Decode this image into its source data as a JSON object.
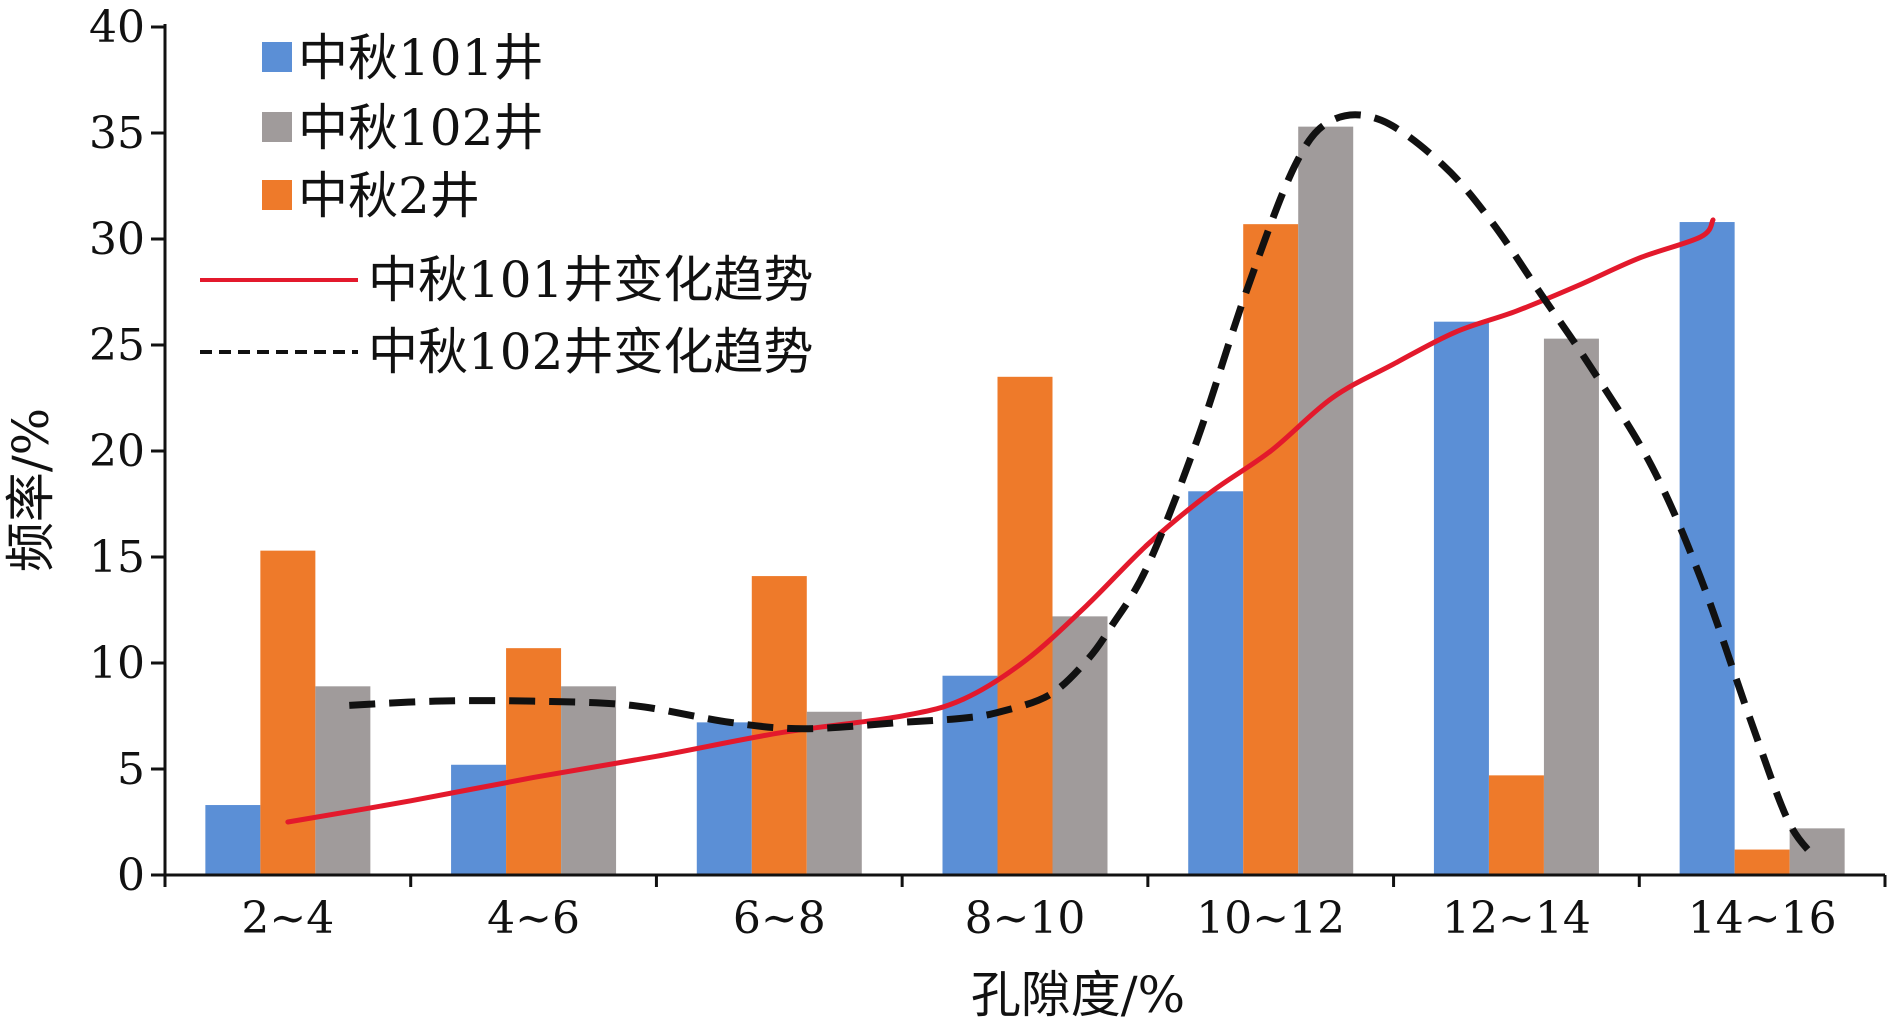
{
  "chart_data": {
    "type": "bar",
    "xlabel": "孔隙度/%",
    "ylabel": "频率/%",
    "ylim": [
      0,
      40
    ],
    "yticks": [
      0,
      5,
      10,
      15,
      20,
      25,
      30,
      35,
      40
    ],
    "categories": [
      "2~4",
      "4~6",
      "6~8",
      "8~10",
      "10~12",
      "12~14",
      "14~16"
    ],
    "series": [
      {
        "name": "中秋101井",
        "kind": "bar",
        "color": "#5b8fd6",
        "values": [
          3.3,
          5.2,
          7.2,
          9.4,
          18.1,
          26.1,
          30.8
        ]
      },
      {
        "name": "中秋2井",
        "kind": "bar",
        "color": "#ee7a2a",
        "values": [
          15.3,
          10.7,
          14.1,
          23.5,
          30.7,
          4.7,
          1.2
        ]
      },
      {
        "name": "中秋102井",
        "kind": "bar",
        "color": "#a09b9b",
        "values": [
          8.9,
          8.9,
          7.7,
          12.2,
          35.3,
          25.3,
          2.2
        ]
      },
      {
        "name": "中秋101井变化趋势",
        "kind": "line",
        "color": "#e3192c",
        "dash": false,
        "points": [
          [
            0,
            2.5
          ],
          [
            0.5,
            3.5
          ],
          [
            1,
            4.6
          ],
          [
            1.5,
            5.6
          ],
          [
            2,
            6.7
          ],
          [
            2.5,
            7.5
          ],
          [
            2.75,
            8.3
          ],
          [
            3,
            10.1
          ],
          [
            3.25,
            12.7
          ],
          [
            3.5,
            15.6
          ],
          [
            3.75,
            18.0
          ],
          [
            4,
            20.0
          ],
          [
            4.25,
            22.5
          ],
          [
            4.5,
            24.1
          ],
          [
            4.75,
            25.6
          ],
          [
            5,
            26.6
          ],
          [
            5.25,
            27.8
          ],
          [
            5.5,
            29.1
          ],
          [
            5.75,
            30.1
          ],
          [
            5.8,
            30.9
          ]
        ]
      },
      {
        "name": "中秋102井变化趋势",
        "kind": "line",
        "color": "#111111",
        "dash": true,
        "points": [
          [
            0.25,
            8.0
          ],
          [
            0.6,
            8.2
          ],
          [
            1.0,
            8.2
          ],
          [
            1.4,
            8.0
          ],
          [
            1.8,
            7.2
          ],
          [
            2.1,
            6.9
          ],
          [
            2.5,
            7.2
          ],
          [
            2.75,
            7.4
          ],
          [
            2.9,
            7.7
          ],
          [
            3.1,
            8.5
          ],
          [
            3.25,
            10.1
          ],
          [
            3.35,
            11.7
          ],
          [
            3.5,
            14.6
          ],
          [
            3.7,
            20.5
          ],
          [
            3.9,
            27.5
          ],
          [
            4.1,
            33.5
          ],
          [
            4.25,
            35.6
          ],
          [
            4.45,
            35.6
          ],
          [
            4.7,
            33.5
          ],
          [
            4.9,
            30.8
          ],
          [
            5.1,
            27.4
          ],
          [
            5.3,
            24.0
          ],
          [
            5.55,
            19.3
          ],
          [
            5.75,
            14.0
          ],
          [
            5.95,
            7.4
          ],
          [
            6.1,
            2.7
          ],
          [
            6.2,
            1.0
          ]
        ]
      }
    ],
    "legend": {
      "position": "top-left",
      "entries": [
        "中秋101井",
        "中秋102井",
        "中秋2井",
        "中秋101井变化趋势",
        "中秋102井变化趋势"
      ]
    }
  }
}
